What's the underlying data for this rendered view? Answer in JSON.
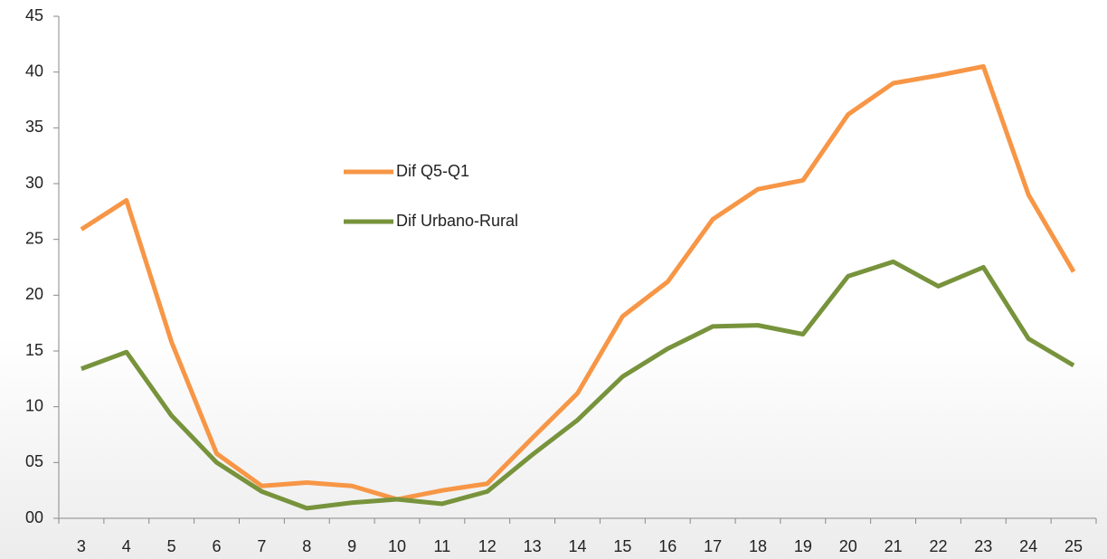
{
  "chart_data": {
    "type": "line",
    "categories": [
      "3",
      "4",
      "5",
      "6",
      "7",
      "8",
      "9",
      "10",
      "11",
      "12",
      "13",
      "14",
      "15",
      "16",
      "17",
      "18",
      "19",
      "20",
      "21",
      "22",
      "23",
      "24",
      "25"
    ],
    "series": [
      {
        "name": "Dif Q5-Q1",
        "color": "#f79646",
        "values": [
          25.9,
          28.5,
          15.8,
          5.8,
          2.9,
          3.2,
          2.9,
          1.7,
          2.5,
          3.1,
          7.2,
          11.2,
          18.1,
          21.2,
          26.8,
          29.5,
          30.3,
          36.2,
          39.0,
          39.7,
          40.5,
          29.0,
          22.1
        ]
      },
      {
        "name": "Dif Urbano-Rural",
        "color": "#77933c",
        "values": [
          13.4,
          14.9,
          9.2,
          5.0,
          2.4,
          0.9,
          1.4,
          1.7,
          1.3,
          2.4,
          5.7,
          8.8,
          12.7,
          15.2,
          17.2,
          17.3,
          16.5,
          21.7,
          23.0,
          20.8,
          22.5,
          16.1,
          13.7
        ]
      }
    ],
    "ylim": [
      0,
      45
    ],
    "yticks": [
      {
        "value": 0,
        "label": "00"
      },
      {
        "value": 5,
        "label": "05"
      },
      10,
      15,
      20,
      25,
      30,
      35,
      40,
      45
    ],
    "grid": false
  }
}
